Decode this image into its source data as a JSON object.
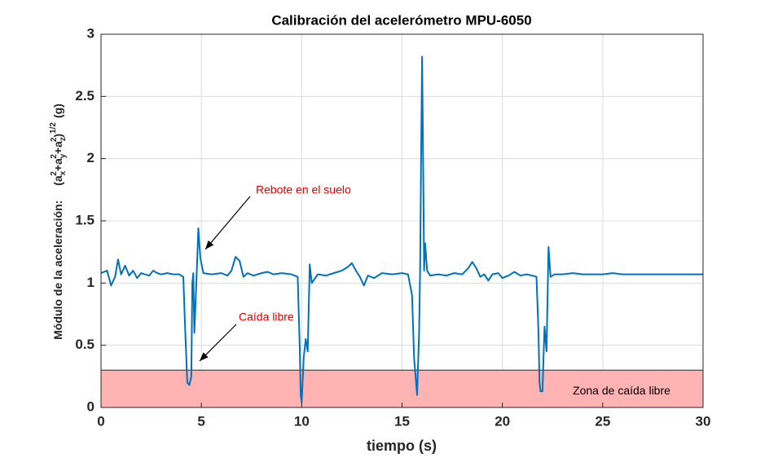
{
  "chart_data": {
    "type": "line",
    "title": "Calibración del acelerómetro MPU-6050",
    "x_label": "tiempo (s)",
    "y_label": [
      "Módulo de la aceleración:",
      "(a",
      "x",
      "2",
      "+a",
      "y",
      "2",
      "+a",
      "z",
      "2",
      ")",
      "1/2",
      "(g)"
    ],
    "x": [
      0,
      0.3,
      0.5,
      0.7,
      0.85,
      1.0,
      1.2,
      1.4,
      1.6,
      1.8,
      2.0,
      2.2,
      2.4,
      2.6,
      2.8,
      3.0,
      3.3,
      3.6,
      3.9,
      4.1,
      4.2,
      4.3,
      4.4,
      4.5,
      4.55,
      4.6,
      4.65,
      4.75,
      4.85,
      4.95,
      5.1,
      5.5,
      6.0,
      6.3,
      6.5,
      6.7,
      6.9,
      7.1,
      7.3,
      7.6,
      8.0,
      8.3,
      8.6,
      9.0,
      9.5,
      9.8,
      9.9,
      9.95,
      10.0,
      10.1,
      10.2,
      10.3,
      10.4,
      10.5,
      10.8,
      11.2,
      11.6,
      12.0,
      12.3,
      12.5,
      12.7,
      12.9,
      13.1,
      13.3,
      13.6,
      14.0,
      14.5,
      15.0,
      15.3,
      15.5,
      15.6,
      15.75,
      15.85,
      15.9,
      15.95,
      16.0,
      16.05,
      16.1,
      16.15,
      16.25,
      16.4,
      16.8,
      17.2,
      17.6,
      18.0,
      18.3,
      18.5,
      18.7,
      18.9,
      19.1,
      19.3,
      19.5,
      19.8,
      20.0,
      20.3,
      20.6,
      20.9,
      21.2,
      21.5,
      21.7,
      21.8,
      21.85,
      21.9,
      22.0,
      22.05,
      22.1,
      22.2,
      22.3,
      22.4,
      22.6,
      23.0,
      23.5,
      24.0,
      24.5,
      25.0,
      25.5,
      26.0,
      27.0,
      28.0,
      29.0,
      30.0
    ],
    "series": [
      {
        "color": "#0072bd",
        "values": [
          1.08,
          1.1,
          0.98,
          1.05,
          1.19,
          1.07,
          1.14,
          1.06,
          1.1,
          1.04,
          1.08,
          1.07,
          1.06,
          1.1,
          1.08,
          1.07,
          1.08,
          1.07,
          1.07,
          1.05,
          0.6,
          0.2,
          0.18,
          0.25,
          1.0,
          1.08,
          0.6,
          1.0,
          1.44,
          1.2,
          1.08,
          1.07,
          1.08,
          1.06,
          1.1,
          1.21,
          1.18,
          1.05,
          1.08,
          1.06,
          1.08,
          1.09,
          1.07,
          1.08,
          1.07,
          1.05,
          0.5,
          0.1,
          0.04,
          0.4,
          0.55,
          0.45,
          1.15,
          1.0,
          1.07,
          1.06,
          1.08,
          1.1,
          1.13,
          1.16,
          1.1,
          1.05,
          0.98,
          1.06,
          1.04,
          1.08,
          1.07,
          1.08,
          1.07,
          0.9,
          0.4,
          0.1,
          0.6,
          1.1,
          2.0,
          2.82,
          2.0,
          1.1,
          1.32,
          1.1,
          1.06,
          1.07,
          1.06,
          1.08,
          1.07,
          1.12,
          1.17,
          1.12,
          1.05,
          1.07,
          1.02,
          1.07,
          1.08,
          1.04,
          1.06,
          1.09,
          1.06,
          1.07,
          1.06,
          1.05,
          0.6,
          0.2,
          0.13,
          0.13,
          0.4,
          0.65,
          0.45,
          1.29,
          1.05,
          1.07,
          1.07,
          1.08,
          1.07,
          1.07,
          1.07,
          1.08,
          1.07,
          1.07,
          1.07,
          1.07,
          1.07
        ]
      }
    ],
    "xlim": [
      0,
      30
    ],
    "xticks": [
      0,
      5,
      10,
      15,
      20,
      25,
      30
    ],
    "ylim": [
      0,
      3
    ],
    "yticks": [
      0,
      0.5,
      1,
      1.5,
      2,
      2.5,
      3
    ],
    "grid": true,
    "region": {
      "label": "Zona de caída libre",
      "ylim": [
        0,
        0.3
      ],
      "color": "#ffb3b3"
    },
    "annotations": [
      {
        "text": "Rebote en el suelo",
        "color": "#e60000"
      },
      {
        "text": "Caída libre",
        "color": "#e60000"
      }
    ]
  }
}
